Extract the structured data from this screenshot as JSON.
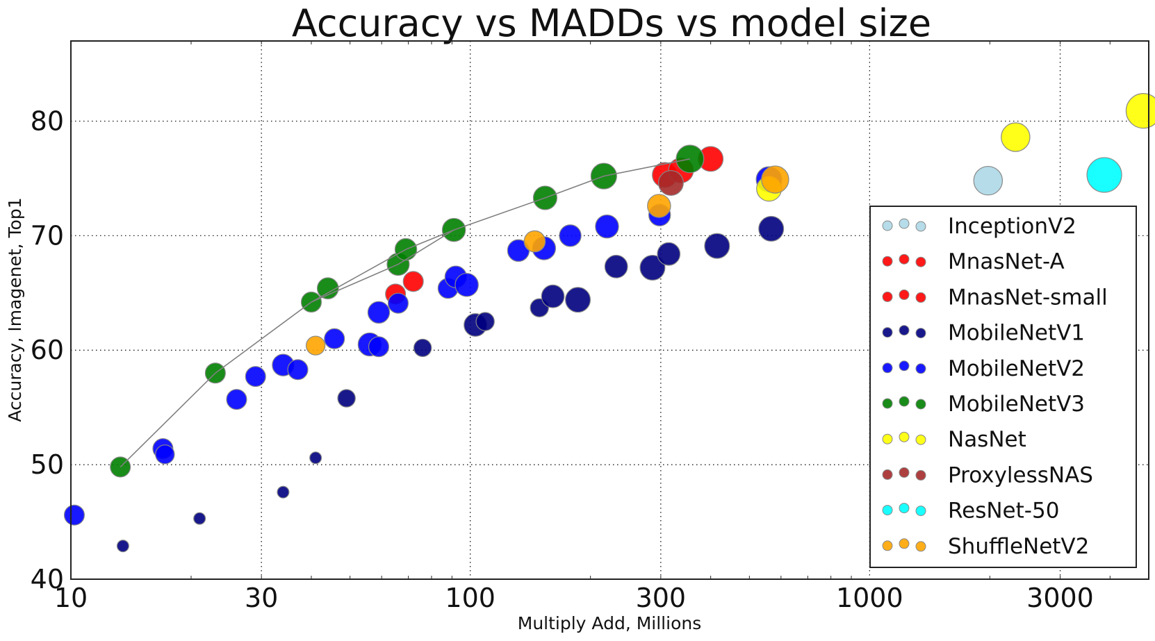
{
  "chart_data": {
    "type": "scatter",
    "title": "Accuracy vs MADDs vs model size",
    "xlabel": "Multiply Add, Millions",
    "ylabel": "Accuracy, Imagenet, Top1",
    "xscale": "log",
    "xlim": [
      10,
      5000
    ],
    "ylim": [
      40,
      87
    ],
    "xticks": [
      10,
      30,
      100,
      300,
      1000,
      3000
    ],
    "xtick_labels": [
      "10",
      "30",
      "100",
      "300",
      "1000",
      "3000"
    ],
    "yticks": [
      40,
      50,
      60,
      70,
      80
    ],
    "ytick_labels": [
      "40",
      "50",
      "60",
      "70",
      "80"
    ],
    "grid": true,
    "legend_position": "lower-right",
    "series": [
      {
        "name": "InceptionV2",
        "color": "#add8e6",
        "points": [
          [
            1980,
            74.8,
            3
          ]
        ]
      },
      {
        "name": "MnasNet-A",
        "color": "#ff0000",
        "points": [
          [
            307,
            75.3,
            2
          ],
          [
            337,
            75.7,
            2
          ],
          [
            400,
            76.7,
            2
          ]
        ]
      },
      {
        "name": "MnasNet-small",
        "color": "#ff0000",
        "points": [
          [
            65,
            64.9,
            1
          ],
          [
            72,
            66.0,
            1
          ]
        ]
      },
      {
        "name": "MobileNetV1",
        "color": "#000080",
        "points": [
          [
            13.5,
            42.9,
            0
          ],
          [
            21,
            45.3,
            0
          ],
          [
            34,
            47.6,
            0
          ],
          [
            41,
            50.6,
            0
          ],
          [
            49,
            55.8,
            0.6
          ],
          [
            76,
            60.2,
            0.6
          ],
          [
            103,
            62.2,
            1.5
          ],
          [
            109,
            62.5,
            0.7
          ],
          [
            149,
            63.7,
            0.7
          ],
          [
            161,
            64.7,
            1.5
          ],
          [
            186,
            64.4,
            2
          ],
          [
            232,
            67.3,
            1.5
          ],
          [
            286,
            67.2,
            2
          ],
          [
            314,
            68.4,
            1.5
          ],
          [
            415,
            69.1,
            2
          ],
          [
            567,
            70.6,
            2
          ]
        ]
      },
      {
        "name": "MobileNetV2",
        "color": "#0000ff",
        "points": [
          [
            10.2,
            45.6,
            1
          ],
          [
            17,
            51.4,
            1
          ],
          [
            17.2,
            50.9,
            0.8
          ],
          [
            26,
            55.7,
            1
          ],
          [
            29,
            57.7,
            1
          ],
          [
            34,
            58.7,
            1.3
          ],
          [
            37,
            58.3,
            1
          ],
          [
            45.7,
            61.0,
            1
          ],
          [
            56,
            60.5,
            1.6
          ],
          [
            59,
            60.3,
            1
          ],
          [
            59,
            63.3,
            1.3
          ],
          [
            66,
            64.1,
            1
          ],
          [
            88,
            65.4,
            1
          ],
          [
            92,
            66.4,
            1.3
          ],
          [
            98,
            65.7,
            1.6
          ],
          [
            132,
            68.7,
            1.3
          ],
          [
            153,
            68.9,
            1.6
          ],
          [
            178,
            70.0,
            1.3
          ],
          [
            220,
            70.8,
            1.6
          ],
          [
            298,
            71.8,
            1.3
          ],
          [
            560,
            74.9,
            2.2
          ]
        ]
      },
      {
        "name": "MobileNetV3",
        "color": "#008000",
        "points": [
          [
            13.3,
            49.8,
            1
          ],
          [
            23,
            58.0,
            1
          ],
          [
            40,
            64.2,
            1
          ],
          [
            44,
            65.4,
            1.2
          ],
          [
            66,
            67.5,
            1.4
          ],
          [
            69,
            68.8,
            1.3
          ],
          [
            91,
            70.5,
            1.6
          ],
          [
            154,
            73.3,
            1.7
          ],
          [
            216,
            75.2,
            2.2
          ],
          [
            355,
            76.7,
            2.7
          ]
        ]
      },
      {
        "name": "NasNet",
        "color": "#ffff00",
        "points": [
          [
            560,
            74.1,
            2
          ],
          [
            2320,
            78.6,
            3
          ],
          [
            4850,
            80.9,
            5
          ]
        ]
      },
      {
        "name": "ProxylessNAS",
        "color": "#a52a2a",
        "points": [
          [
            318,
            74.6,
            2
          ]
        ]
      },
      {
        "name": "ResNet-50",
        "color": "#00ffff",
        "points": [
          [
            3870,
            75.3,
            5
          ]
        ]
      },
      {
        "name": "ShuffleNetV2",
        "color": "#ffa500",
        "points": [
          [
            41,
            60.4,
            0.8
          ],
          [
            145,
            69.5,
            1.2
          ],
          [
            297,
            72.6,
            1.6
          ],
          [
            580,
            74.9,
            2.6
          ]
        ]
      }
    ],
    "lines": [
      {
        "name": "MobileNetV3-curve-a",
        "color": "#808080",
        "points": [
          [
            13.3,
            49.8
          ],
          [
            23,
            58.0
          ],
          [
            40,
            64.2
          ],
          [
            66,
            67.5
          ],
          [
            91,
            70.5
          ],
          [
            154,
            73.3
          ],
          [
            216,
            75.2
          ],
          [
            355,
            76.7
          ]
        ]
      },
      {
        "name": "MobileNetV3-curve-b",
        "color": "#808080",
        "points": [
          [
            40,
            64.2
          ],
          [
            69,
            68.8
          ],
          [
            91,
            70.5
          ]
        ]
      }
    ]
  }
}
